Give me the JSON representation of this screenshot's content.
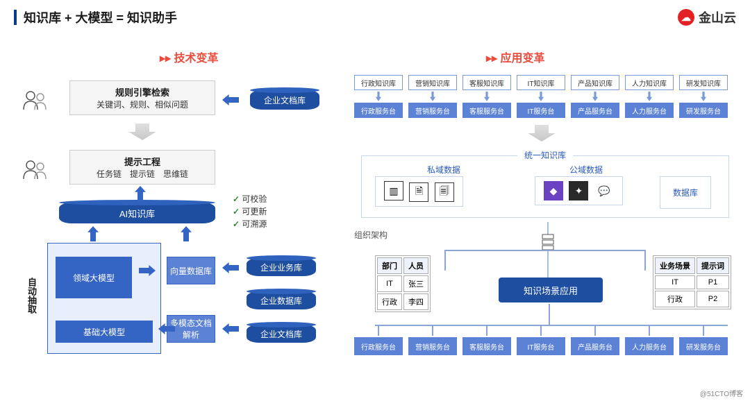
{
  "header": {
    "title": "知识库 + 大模型 = 知识助手"
  },
  "logo": {
    "text": "金山云",
    "icon": "☁"
  },
  "sections": {
    "tech": "技术变革",
    "app": "应用变革"
  },
  "left": {
    "rule_box": {
      "title": "规则引擎检索",
      "sub": "关键词、规则、相似问题"
    },
    "doc_cyl": "企业文档库",
    "prompt_box": {
      "title": "提示工程",
      "sub": "任务链　提示链　思维链"
    },
    "ai_cyl": "AI知识库",
    "domain_model": "领域大模型",
    "base_model": "基础大模型",
    "vector_db": "向量数据库",
    "multimodal": "多模态文档解析",
    "biz_cyl": "企业业务库",
    "data_cyl": "企业数据库",
    "doc_cyl2": "企业文档库",
    "checks": [
      "可校验",
      "可更新",
      "可溯源"
    ],
    "auto_extract": "自动抽取"
  },
  "right": {
    "kb_items": [
      "行政知识库",
      "营销知识库",
      "客服知识库",
      "IT知识库",
      "产品知识库",
      "人力知识库",
      "研发知识库"
    ],
    "svc_items": [
      "行政服务台",
      "营销服务台",
      "客服服务台",
      "IT服务台",
      "产品服务台",
      "人力服务台",
      "研发服务台"
    ],
    "unified": "统一知识库",
    "private_data": "私域数据",
    "public_data": "公域数据",
    "database": "数据库",
    "org_struct": "组织架构",
    "scene_app": "知识场景应用",
    "table_left": {
      "headers": [
        "部门",
        "人员"
      ],
      "rows": [
        [
          "IT",
          "张三"
        ],
        [
          "行政",
          "李四"
        ]
      ]
    },
    "table_right": {
      "headers": [
        "业务场景",
        "提示词"
      ],
      "rows": [
        [
          "IT",
          "P1"
        ],
        [
          "行政",
          "P2"
        ]
      ]
    },
    "bottom_svc": [
      "行政服务台",
      "营销服务台",
      "客服服务台",
      "IT服务台",
      "产品服务台",
      "人力服务台",
      "研发服务台"
    ]
  },
  "footer": "@51CTO博客",
  "colors": {
    "brand_red": "#e32124",
    "accent_red": "#e84c3d",
    "deep_blue": "#1e4ea0",
    "mid_blue": "#3464c4",
    "light_blue": "#5c82d6",
    "outline_blue": "#7a9ad8"
  }
}
